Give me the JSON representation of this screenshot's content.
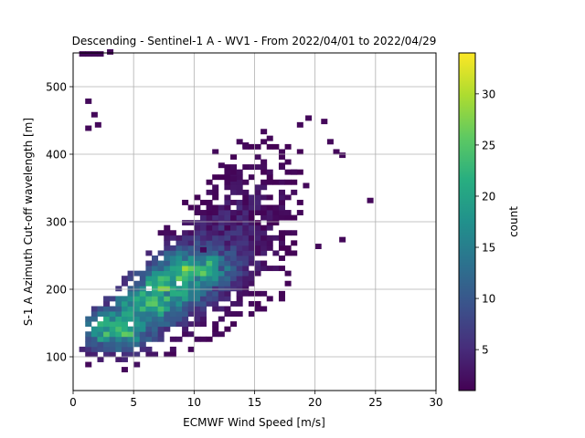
{
  "chart_data": {
    "type": "heatmap",
    "title": "Descending - Sentinel-1 A - WV1 - From 2022/04/01 to 2022/04/29",
    "xlabel": "ECMWF Wind Speed [m/s]",
    "ylabel": "S-1 A Azimuth Cut-off wavelength [m]",
    "xlim": [
      0,
      30
    ],
    "ylim": [
      50,
      550
    ],
    "xticks": [
      0,
      5,
      10,
      15,
      20,
      25,
      30
    ],
    "yticks": [
      100,
      200,
      300,
      400,
      500
    ],
    "grid": true,
    "colormap": "viridis",
    "colorbar": {
      "label": "count",
      "min": 1,
      "max": 34,
      "ticks": [
        5,
        10,
        15,
        20,
        25,
        30
      ]
    },
    "density_model": {
      "trend_points": [
        [
          1,
          115
        ],
        [
          3,
          135
        ],
        [
          5,
          160
        ],
        [
          7,
          190
        ],
        [
          9,
          215
        ],
        [
          11,
          240
        ],
        [
          13,
          265
        ],
        [
          15,
          285
        ],
        [
          18,
          320
        ]
      ],
      "peak_points": [
        [
          3.5,
          140
        ],
        [
          6,
          175
        ],
        [
          8,
          205
        ],
        [
          9.5,
          225
        ]
      ],
      "peak_count": 34
    },
    "sparse_points": [
      [
        0.5,
        545
      ],
      [
        1.0,
        545
      ],
      [
        1.5,
        545
      ],
      [
        2.0,
        545
      ],
      [
        2.8,
        548
      ],
      [
        1.0,
        475
      ],
      [
        1.5,
        455
      ],
      [
        1.0,
        435
      ],
      [
        1.8,
        440
      ],
      [
        19.2,
        450
      ],
      [
        20.5,
        445
      ],
      [
        18.5,
        440
      ],
      [
        21.0,
        415
      ],
      [
        21.5,
        400
      ],
      [
        22.0,
        395
      ],
      [
        24.3,
        328
      ],
      [
        22.0,
        270
      ],
      [
        20.0,
        260
      ],
      [
        19.0,
        350
      ],
      [
        18.0,
        370
      ],
      [
        17.0,
        380
      ],
      [
        14.0,
        410
      ],
      [
        13.5,
        415
      ],
      [
        16.0,
        420
      ],
      [
        15.5,
        430
      ],
      [
        10.5,
        255
      ],
      [
        12.0,
        380
      ],
      [
        13.0,
        360
      ],
      [
        11.5,
        400
      ]
    ]
  },
  "colors": {
    "grid": "#b0b0b0",
    "axis": "#000000",
    "background": "#ffffff"
  }
}
